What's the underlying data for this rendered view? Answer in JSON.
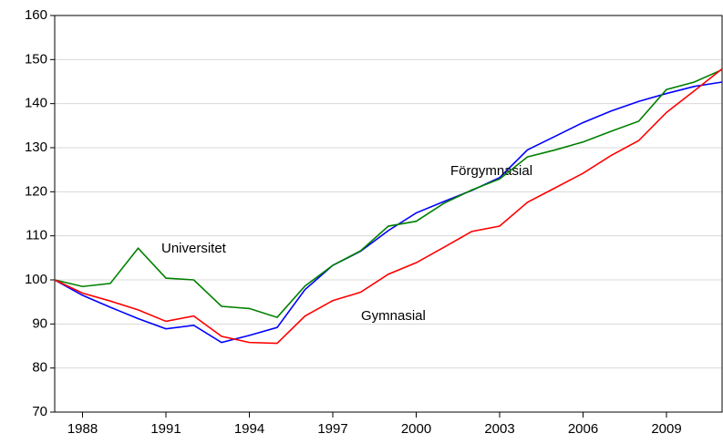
{
  "chart_data": {
    "type": "line",
    "x": [
      1987,
      1988,
      1989,
      1990,
      1991,
      1992,
      1993,
      1994,
      1995,
      1996,
      1997,
      1998,
      1999,
      2000,
      2001,
      2002,
      2003,
      2004,
      2005,
      2006,
      2007,
      2008,
      2009,
      2010,
      2011
    ],
    "series": [
      {
        "name": "Förgymnasial",
        "color": "#0000ff",
        "values": [
          100,
          96.5,
          93.8,
          91.2,
          88.9,
          89.7,
          85.8,
          87.4,
          89.2,
          97.8,
          103.3,
          106.5,
          111.2,
          115.2,
          117.8,
          120.3,
          123.2,
          129.5,
          132.6,
          135.7,
          138.3,
          140.5,
          142.3,
          143.9,
          144.9
        ]
      },
      {
        "name": "Universitet",
        "color": "#008000",
        "values": [
          100,
          98.5,
          99.2,
          107.2,
          100.4,
          100.0,
          94.0,
          93.5,
          91.5,
          98.6,
          103.3,
          106.6,
          112.2,
          113.3,
          117.4,
          120.4,
          122.9,
          127.9,
          129.5,
          131.3,
          133.7,
          136.0,
          143.2,
          144.9,
          147.7
        ]
      },
      {
        "name": "Gymnasial",
        "color": "#ff0000",
        "values": [
          100,
          97.0,
          95.2,
          93.2,
          90.6,
          91.8,
          87.2,
          85.8,
          85.6,
          91.8,
          95.3,
          97.2,
          101.3,
          103.9,
          107.4,
          111.0,
          112.2,
          117.6,
          120.9,
          124.2,
          128.2,
          131.6,
          138.0,
          142.9,
          147.9
        ]
      }
    ],
    "xlim": [
      1987,
      2011
    ],
    "xticks": [
      1988,
      1991,
      1994,
      1997,
      2000,
      2003,
      2006,
      2009
    ],
    "ylim": [
      70,
      160
    ],
    "yticks": [
      70,
      80,
      90,
      100,
      110,
      120,
      130,
      140,
      150,
      160
    ],
    "grid": true
  }
}
